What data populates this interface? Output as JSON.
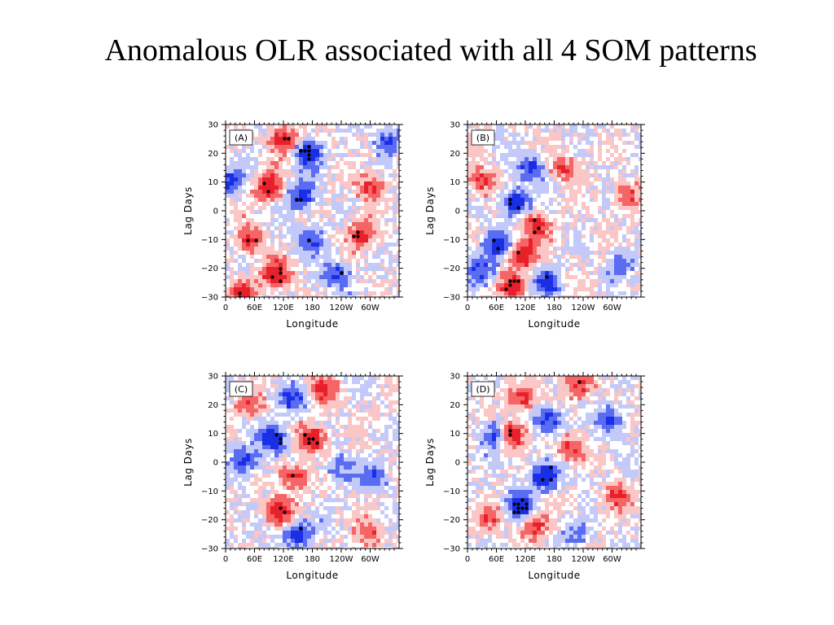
{
  "title": "Anomalous OLR associated with all 4 SOM patterns",
  "colors": {
    "strong_red": "#e8202a",
    "mid_red": "#f56565",
    "light_red": "#fbc6c6",
    "strong_blue": "#1a2ee6",
    "mid_blue": "#5a6cf2",
    "light_blue": "#c3c9f8",
    "significance_dot": "#000000"
  },
  "chart_data": [
    {
      "type": "heatmap",
      "label": "(A)",
      "xlabel": "Longitude",
      "ylabel": "Lag Days",
      "x_ticks": [
        "0",
        "60E",
        "120E",
        "180",
        "120W",
        "60W"
      ],
      "y_ticks": [
        "30",
        "20",
        "10",
        "0",
        "−10",
        "−20",
        "−30"
      ],
      "xlim": [
        0,
        360
      ],
      "ylim": [
        -30,
        30
      ],
      "features": [
        {
          "lon": 90,
          "lag": 8,
          "sign": 1,
          "amp": 1.0
        },
        {
          "lon": 120,
          "lag": 25,
          "sign": 1,
          "amp": 0.9
        },
        {
          "lon": 105,
          "lag": -22,
          "sign": 1,
          "amp": 1.0
        },
        {
          "lon": 50,
          "lag": -10,
          "sign": 1,
          "amp": 0.8
        },
        {
          "lon": 35,
          "lag": -28,
          "sign": 1,
          "amp": 0.7
        },
        {
          "lon": 280,
          "lag": -8,
          "sign": 1,
          "amp": 0.8
        },
        {
          "lon": 300,
          "lag": 8,
          "sign": 1,
          "amp": 0.7
        },
        {
          "lon": 170,
          "lag": 20,
          "sign": -1,
          "amp": 0.9
        },
        {
          "lon": 160,
          "lag": 5,
          "sign": -1,
          "amp": 0.8
        },
        {
          "lon": 230,
          "lag": -22,
          "sign": -1,
          "amp": 0.7
        },
        {
          "lon": 10,
          "lag": 10,
          "sign": -1,
          "amp": 0.7
        },
        {
          "lon": 175,
          "lag": -10,
          "sign": -1,
          "amp": 0.6
        },
        {
          "lon": 335,
          "lag": 25,
          "sign": -1,
          "amp": 0.6
        }
      ]
    },
    {
      "type": "heatmap",
      "label": "(B)",
      "xlabel": "Longitude",
      "ylabel": "Lag Days",
      "x_ticks": [
        "0",
        "60E",
        "120E",
        "180",
        "120W",
        "60W"
      ],
      "y_ticks": [
        "30",
        "20",
        "10",
        "0",
        "−10",
        "−20",
        "−30"
      ],
      "xlim": [
        0,
        360
      ],
      "ylim": [
        -30,
        30
      ],
      "features": [
        {
          "lon": 100,
          "lag": 3,
          "sign": -1,
          "amp": 1.0
        },
        {
          "lon": 60,
          "lag": -12,
          "sign": -1,
          "amp": 0.8
        },
        {
          "lon": 30,
          "lag": -20,
          "sign": -1,
          "amp": 0.6
        },
        {
          "lon": 130,
          "lag": 15,
          "sign": -1,
          "amp": 0.7
        },
        {
          "lon": 165,
          "lag": -25,
          "sign": -1,
          "amp": 0.7
        },
        {
          "lon": 320,
          "lag": -18,
          "sign": -1,
          "amp": 0.5
        },
        {
          "lon": 115,
          "lag": -15,
          "sign": 1,
          "amp": 1.0
        },
        {
          "lon": 140,
          "lag": -5,
          "sign": 1,
          "amp": 0.8
        },
        {
          "lon": 95,
          "lag": -26,
          "sign": 1,
          "amp": 0.8
        },
        {
          "lon": 30,
          "lag": 10,
          "sign": 1,
          "amp": 0.7
        },
        {
          "lon": 200,
          "lag": 15,
          "sign": 1,
          "amp": 0.6
        },
        {
          "lon": 330,
          "lag": 5,
          "sign": 1,
          "amp": 0.6
        }
      ]
    },
    {
      "type": "heatmap",
      "label": "(C)",
      "xlabel": "Longitude",
      "ylabel": "Lag Days",
      "x_ticks": [
        "0",
        "60E",
        "120E",
        "180",
        "120W",
        "60W"
      ],
      "y_ticks": [
        "30",
        "20",
        "10",
        "0",
        "−10",
        "−20",
        "−30"
      ],
      "xlim": [
        0,
        360
      ],
      "ylim": [
        -30,
        30
      ],
      "features": [
        {
          "lon": 100,
          "lag": 8,
          "sign": -1,
          "amp": 1.0
        },
        {
          "lon": 40,
          "lag": 0,
          "sign": -1,
          "amp": 0.7
        },
        {
          "lon": 140,
          "lag": 22,
          "sign": -1,
          "amp": 0.7
        },
        {
          "lon": 150,
          "lag": -25,
          "sign": -1,
          "amp": 0.9
        },
        {
          "lon": 310,
          "lag": -5,
          "sign": -1,
          "amp": 0.6
        },
        {
          "lon": 235,
          "lag": -2,
          "sign": -1,
          "amp": 0.5
        },
        {
          "lon": 180,
          "lag": 8,
          "sign": 1,
          "amp": 1.0
        },
        {
          "lon": 110,
          "lag": -17,
          "sign": 1,
          "amp": 1.0
        },
        {
          "lon": 140,
          "lag": -5,
          "sign": 1,
          "amp": 0.8
        },
        {
          "lon": 200,
          "lag": 25,
          "sign": 1,
          "amp": 0.7
        },
        {
          "lon": 50,
          "lag": 20,
          "sign": 1,
          "amp": 0.5
        },
        {
          "lon": 300,
          "lag": -25,
          "sign": 1,
          "amp": 0.5
        }
      ]
    },
    {
      "type": "heatmap",
      "label": "(D)",
      "xlabel": "Longitude",
      "ylabel": "Lag Days",
      "x_ticks": [
        "0",
        "60E",
        "120E",
        "180",
        "120W",
        "60W"
      ],
      "y_ticks": [
        "30",
        "20",
        "10",
        "0",
        "−10",
        "−20",
        "−30"
      ],
      "xlim": [
        0,
        360
      ],
      "ylim": [
        -30,
        30
      ],
      "features": [
        {
          "lon": 90,
          "lag": 10,
          "sign": 1,
          "amp": 1.0
        },
        {
          "lon": 115,
          "lag": 22,
          "sign": 1,
          "amp": 0.7
        },
        {
          "lon": 230,
          "lag": 27,
          "sign": 1,
          "amp": 0.7
        },
        {
          "lon": 140,
          "lag": -22,
          "sign": 1,
          "amp": 0.7
        },
        {
          "lon": 210,
          "lag": 5,
          "sign": 1,
          "amp": 0.6
        },
        {
          "lon": 310,
          "lag": -12,
          "sign": 1,
          "amp": 0.6
        },
        {
          "lon": 45,
          "lag": -20,
          "sign": 1,
          "amp": 0.5
        },
        {
          "lon": 160,
          "lag": -5,
          "sign": -1,
          "amp": 1.0
        },
        {
          "lon": 110,
          "lag": -15,
          "sign": -1,
          "amp": 0.9
        },
        {
          "lon": 60,
          "lag": 10,
          "sign": -1,
          "amp": 0.8
        },
        {
          "lon": 170,
          "lag": 15,
          "sign": -1,
          "amp": 0.8
        },
        {
          "lon": 300,
          "lag": 15,
          "sign": -1,
          "amp": 0.6
        },
        {
          "lon": 230,
          "lag": -25,
          "sign": -1,
          "amp": 0.5
        }
      ]
    }
  ]
}
